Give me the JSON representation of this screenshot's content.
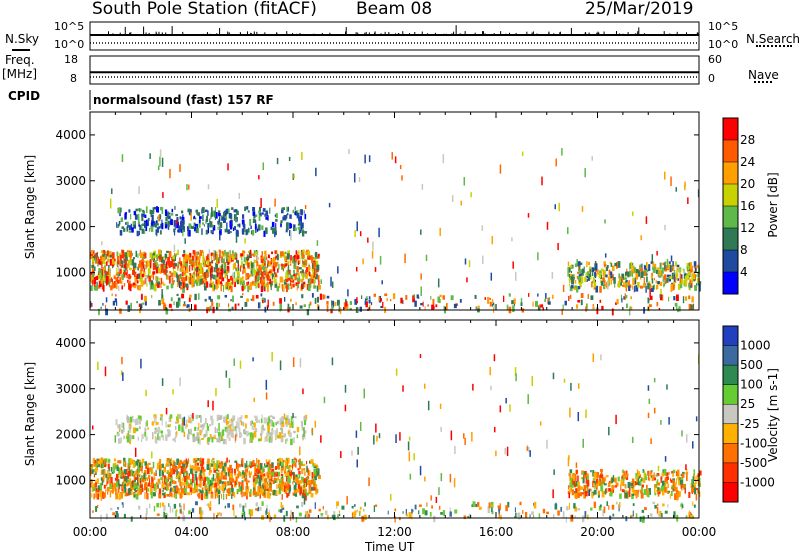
{
  "header": {
    "station": "South Pole Station (fitACF)",
    "beam": "Beam 08",
    "date": "25/Mar/2019"
  },
  "left_labels": {
    "nsky": "N.Sky",
    "freq": "Freq.",
    "freq_unit": "[MHz]",
    "cpid": "CPID"
  },
  "right_labels": {
    "nsearch": "N.Search",
    "nave": "Nave"
  },
  "noise_panel": {
    "ticks_left": [
      "10^5",
      "10^0"
    ],
    "ticks_right": [
      "10^5",
      "10^0"
    ]
  },
  "freq_panel": {
    "ticks_left": [
      "18",
      "8"
    ],
    "ticks_right": [
      "60",
      "0"
    ],
    "freq_mhz": 12.2,
    "nave": 15
  },
  "cpid_text": "normalsound (fast) 157 RF",
  "chart_data": [
    {
      "type": "heatmap",
      "name": "power",
      "ylabel": "Slant Range [km]",
      "xlabel": "",
      "ylim": [
        180,
        4500
      ],
      "xlim_hours": [
        0,
        24
      ],
      "yticks": [
        "1000",
        "2000",
        "3000",
        "4000"
      ],
      "xticks": [
        "00:00",
        "04:00",
        "08:00",
        "12:00",
        "16:00",
        "20:00",
        "00:00"
      ],
      "colorbar": {
        "label": "Power [dB]",
        "ticks": [
          "28",
          "24",
          "20",
          "16",
          "12",
          "8",
          "4"
        ],
        "colors": [
          "#ff0000",
          "#ff5a00",
          "#ffa000",
          "#c8d200",
          "#5fb84a",
          "#2f7a55",
          "#1e4aa0",
          "#0000ff"
        ]
      },
      "regions": [
        {
          "label": "band_main",
          "t": [
            0.0,
            9.0
          ],
          "r": [
            700,
            1500
          ],
          "cmap": "power_hi"
        },
        {
          "label": "band_upper",
          "t": [
            1.0,
            8.5
          ],
          "r": [
            1900,
            2450
          ],
          "cmap": "power_lo"
        },
        {
          "label": "band_evening",
          "t": [
            18.8,
            24.0
          ],
          "r": [
            700,
            1250
          ],
          "cmap": "power_mid"
        },
        {
          "label": "near_range",
          "t": [
            0.0,
            24.0
          ],
          "r": [
            200,
            550
          ],
          "cmap": "mixed"
        }
      ]
    },
    {
      "type": "heatmap",
      "name": "velocity",
      "ylabel": "Slant Range [km]",
      "xlabel": "Time UT",
      "ylim": [
        180,
        4500
      ],
      "xlim_hours": [
        0,
        24
      ],
      "yticks": [
        "1000",
        "2000",
        "3000",
        "4000"
      ],
      "xticks": [
        "00:00",
        "04:00",
        "08:00",
        "12:00",
        "16:00",
        "20:00",
        "00:00"
      ],
      "colorbar": {
        "label": "Velocity [m s-1]",
        "ticks": [
          "1000",
          "500",
          "100",
          "25",
          "-25",
          "-100",
          "-500",
          "-1000"
        ],
        "colors": [
          "#2040c0",
          "#3a6aa0",
          "#2e8a50",
          "#66cc33",
          "#c8c8c0",
          "#ffb000",
          "#ff7000",
          "#ff3000",
          "#ff0000"
        ]
      },
      "regions": [
        {
          "label": "band_main",
          "t": [
            0.0,
            9.0
          ],
          "r": [
            700,
            1500
          ],
          "cmap": "vel_neg"
        },
        {
          "label": "band_upper",
          "t": [
            1.0,
            8.5
          ],
          "r": [
            1900,
            2450
          ],
          "cmap": "vel_grey"
        },
        {
          "label": "band_evening",
          "t": [
            18.8,
            24.0
          ],
          "r": [
            700,
            1250
          ],
          "cmap": "vel_neg"
        },
        {
          "label": "near_range",
          "t": [
            0.0,
            24.0
          ],
          "r": [
            200,
            550
          ],
          "cmap": "mixed_vel"
        }
      ]
    }
  ]
}
